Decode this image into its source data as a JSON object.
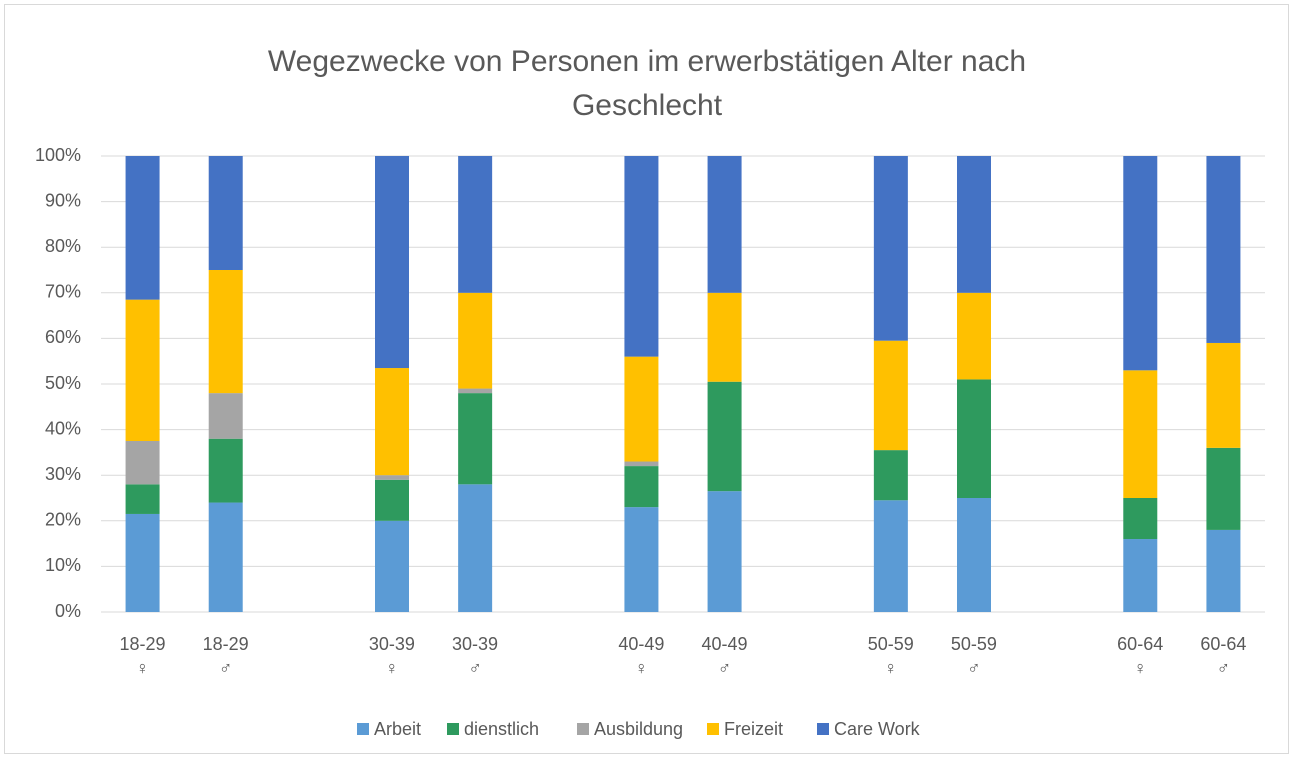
{
  "chart_data": {
    "type": "stacked_bar",
    "title": "Wegezwecke von Personen im erwerbstätigen Alter nach Geschlecht",
    "categories": [
      "18-29\n♀",
      "18-29\n♂",
      null,
      "30-39\n♀",
      "30-39\n♂",
      null,
      "40-49\n♀",
      "40-49\n♂",
      null,
      "50-59\n♀",
      "50-59\n♂",
      null,
      "60-64\n♀",
      "60-64\n♂"
    ],
    "series": [
      {
        "name": "Arbeit",
        "color": "#5b9bd5",
        "values": [
          21.5,
          24,
          null,
          20,
          28,
          null,
          23,
          26.5,
          null,
          24.5,
          25,
          null,
          16,
          18
        ]
      },
      {
        "name": "dienstlich",
        "color": "#2e9a5e",
        "values": [
          6.5,
          14,
          null,
          9,
          20,
          null,
          9,
          24,
          null,
          11,
          26,
          null,
          9,
          18
        ]
      },
      {
        "name": "Ausbildung",
        "color": "#a5a5a5",
        "values": [
          9.5,
          10,
          null,
          1,
          1,
          null,
          1,
          0,
          null,
          0,
          0,
          null,
          0,
          0
        ]
      },
      {
        "name": "Freizeit",
        "color": "#ffc000",
        "values": [
          31,
          27,
          null,
          23.5,
          21,
          null,
          23,
          19.5,
          null,
          24,
          19,
          null,
          28,
          23
        ]
      },
      {
        "name": "Care Work",
        "color": "#4472c4",
        "values": [
          31.5,
          25,
          null,
          46.5,
          30,
          null,
          44,
          30,
          null,
          40.5,
          30,
          null,
          47,
          41
        ]
      }
    ],
    "ylim": [
      0,
      100
    ],
    "yticks": [
      {
        "value": 0,
        "label": "0%"
      },
      {
        "value": 10,
        "label": "10%"
      },
      {
        "value": 20,
        "label": "20%"
      },
      {
        "value": 30,
        "label": "30%"
      },
      {
        "value": 40,
        "label": "40%"
      },
      {
        "value": 50,
        "label": "50%"
      },
      {
        "value": 60,
        "label": "60%"
      },
      {
        "value": 70,
        "label": "70%"
      },
      {
        "value": 80,
        "label": "80%"
      },
      {
        "value": 90,
        "label": "90%"
      },
      {
        "value": 100,
        "label": "100%"
      }
    ],
    "grid": true,
    "legend": "bottom"
  }
}
